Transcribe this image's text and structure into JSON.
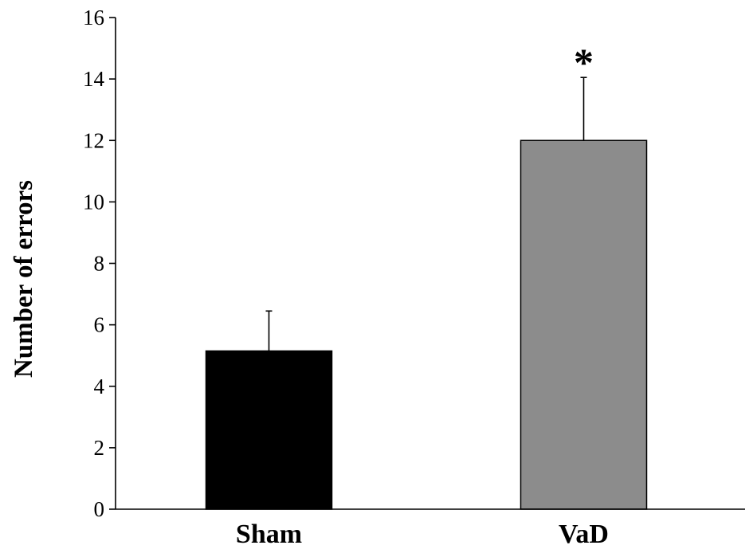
{
  "chart_data": {
    "type": "bar",
    "categories": [
      "Sham",
      "VaD"
    ],
    "values": [
      5.15,
      12.0
    ],
    "error_bars": [
      1.3,
      2.05
    ],
    "annotations": [
      {
        "category": "VaD",
        "text": "*"
      }
    ],
    "title": "",
    "xlabel": "",
    "ylabel": "Number of errors",
    "ylim": [
      0,
      16
    ],
    "yticks": [
      0,
      2,
      4,
      6,
      8,
      10,
      12,
      14,
      16
    ],
    "grid": false,
    "colors": {
      "Sham": "#000000",
      "VaD": "#8c8c8c",
      "axis": "#000000",
      "error_bar": "#000000"
    }
  }
}
